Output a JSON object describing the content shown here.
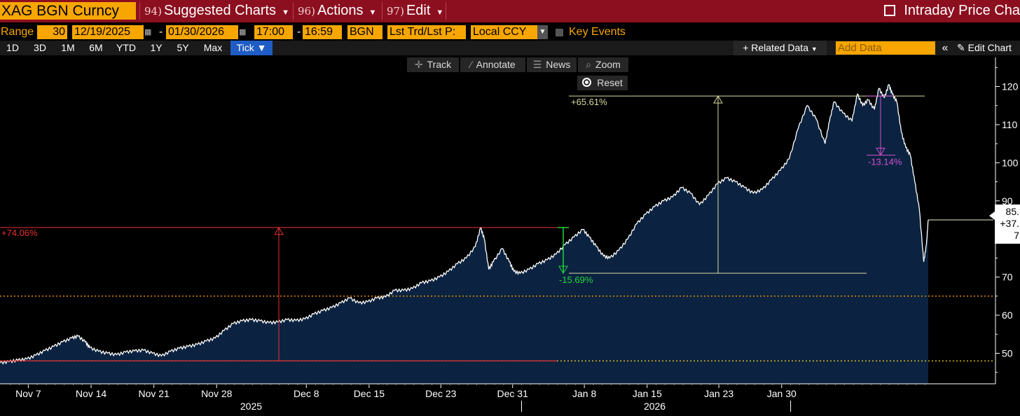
{
  "header": {
    "ticker": "XAG BGN Curncy",
    "menus": [
      {
        "num": "94)",
        "label": "Suggested Charts"
      },
      {
        "num": "96)",
        "label": "Actions"
      },
      {
        "num": "97)",
        "label": "Edit"
      }
    ],
    "intraday_label": "Intraday Price Cha"
  },
  "range_row": {
    "range_label": "Range",
    "days": "30",
    "start_date": "12/19/2025",
    "end_date": "01/30/2026",
    "start_time": "17:00",
    "end_time": "16:59",
    "source": "BGN",
    "field": "Lst Trd/Lst P:",
    "currency": "Local CCY",
    "key_events": "Key Events"
  },
  "periods": [
    "1D",
    "3D",
    "1M",
    "6M",
    "YTD",
    "1Y",
    "5Y",
    "Max",
    "Tick"
  ],
  "right_tools": {
    "related": "Related Data",
    "add_placeholder": "Add Data",
    "edit_chart": "Edit Chart"
  },
  "toolbar": {
    "track": "Track",
    "annotate": "Annotate",
    "news": "News",
    "zoom": "Zoom",
    "reset": "Reset"
  },
  "colors": {
    "title_bar": "#8c0f1f",
    "amber": "#f7a600",
    "area_fill": "#0b2340",
    "price_line": "#ffffff",
    "red_ann": "#e8302f",
    "green_ann": "#22d43a",
    "olive_ann": "#d9d9a0",
    "magenta_ann": "#d24fd2",
    "dotted_line": "#ff9900"
  },
  "chart_data": {
    "type": "area",
    "ylim": [
      42,
      128
    ],
    "yticks": [
      50,
      60,
      70,
      80,
      90,
      100,
      110,
      120
    ],
    "x_ticks": [
      {
        "label": "Nov 7",
        "x": 6
      },
      {
        "label": "Nov 14",
        "x": 13
      },
      {
        "label": "Nov 21",
        "x": 20
      },
      {
        "label": "Nov 28",
        "x": 27
      },
      {
        "label": "Dec 8",
        "x": 37
      },
      {
        "label": "Dec 15",
        "x": 44
      },
      {
        "label": "Dec 23",
        "x": 52
      },
      {
        "label": "Dec 31",
        "x": 60
      },
      {
        "label": "Jan 8",
        "x": 68
      },
      {
        "label": "Jan 15",
        "x": 75
      },
      {
        "label": "Jan 23",
        "x": 83
      },
      {
        "label": "Jan 30",
        "x": 90
      }
    ],
    "year_labels": [
      {
        "label": "2025",
        "x": 31
      },
      {
        "label": "2026",
        "x": 76
      }
    ],
    "x_unit": "days since Nov 1, 2025",
    "series": [
      {
        "points": [
          [
            3,
            47.5
          ],
          [
            4,
            47.8
          ],
          [
            5,
            48.2
          ],
          [
            6,
            48.5
          ],
          [
            7,
            49.5
          ],
          [
            8,
            50.7
          ],
          [
            9,
            51.8
          ],
          [
            10,
            53.0
          ],
          [
            11,
            54.0
          ],
          [
            11.7,
            54.5
          ],
          [
            12.5,
            53.0
          ],
          [
            13,
            51.5
          ],
          [
            14,
            50.5
          ],
          [
            15,
            50.0
          ],
          [
            16,
            49.6
          ],
          [
            17,
            50.3
          ],
          [
            18,
            50.6
          ],
          [
            19,
            50.8
          ],
          [
            20,
            50.0
          ],
          [
            21,
            49.3
          ],
          [
            22,
            50.5
          ],
          [
            23,
            51.3
          ],
          [
            24,
            51.8
          ],
          [
            25,
            52.3
          ],
          [
            26,
            53.2
          ],
          [
            27,
            54.0
          ],
          [
            28,
            56.0
          ],
          [
            29,
            57.8
          ],
          [
            30,
            58.5
          ],
          [
            31,
            58.8
          ],
          [
            32,
            58.5
          ],
          [
            33,
            58.0
          ],
          [
            34,
            58.2
          ],
          [
            35,
            58.8
          ],
          [
            36,
            58.6
          ],
          [
            37,
            59.0
          ],
          [
            38,
            60.3
          ],
          [
            39,
            61.2
          ],
          [
            40,
            62.0
          ],
          [
            41,
            63.2
          ],
          [
            42,
            64.5
          ],
          [
            43,
            63.2
          ],
          [
            44,
            63.5
          ],
          [
            45,
            64.5
          ],
          [
            46,
            64.8
          ],
          [
            47,
            66.5
          ],
          [
            48,
            66.5
          ],
          [
            49,
            67.0
          ],
          [
            50,
            68.5
          ],
          [
            51,
            69.0
          ],
          [
            52,
            70.0
          ],
          [
            53,
            71.5
          ],
          [
            54,
            73.5
          ],
          [
            55,
            75.0
          ],
          [
            56,
            78.0
          ],
          [
            56.6,
            83.0
          ],
          [
            57,
            80.0
          ],
          [
            57.5,
            72.0
          ],
          [
            58,
            74.0
          ],
          [
            59,
            77.5
          ],
          [
            59.8,
            74.0
          ],
          [
            60.3,
            71.5
          ],
          [
            61,
            71.0
          ],
          [
            62,
            72.0
          ],
          [
            63,
            73.5
          ],
          [
            64,
            74.5
          ],
          [
            65,
            76.0
          ],
          [
            66,
            78.5
          ],
          [
            67,
            80.5
          ],
          [
            68,
            82.5
          ],
          [
            68.7,
            80.5
          ],
          [
            69.5,
            78.0
          ],
          [
            70.3,
            75.5
          ],
          [
            71,
            75.0
          ],
          [
            72,
            77.0
          ],
          [
            73,
            80.0
          ],
          [
            74,
            84.0
          ],
          [
            75,
            86.5
          ],
          [
            76,
            88.5
          ],
          [
            77,
            90.0
          ],
          [
            78,
            91.0
          ],
          [
            79,
            93.5
          ],
          [
            80,
            92.0
          ],
          [
            81,
            89.0
          ],
          [
            82,
            91.5
          ],
          [
            83,
            94.5
          ],
          [
            84,
            96.0
          ],
          [
            85,
            95.0
          ],
          [
            86,
            93.5
          ],
          [
            87,
            92.0
          ],
          [
            88,
            93.0
          ],
          [
            89,
            95.5
          ],
          [
            90,
            98.0
          ],
          [
            91,
            101.0
          ],
          [
            92,
            109.0
          ],
          [
            93,
            115.0
          ],
          [
            94,
            111.5
          ],
          [
            95,
            105.0
          ],
          [
            95.5,
            111.0
          ],
          [
            96,
            116.0
          ],
          [
            97,
            113.0
          ],
          [
            98,
            111.0
          ],
          [
            98.6,
            118.0
          ],
          [
            99.2,
            115.0
          ],
          [
            99.8,
            116.5
          ],
          [
            100.5,
            114.0
          ],
          [
            101,
            119.5
          ],
          [
            101.6,
            117.0
          ],
          [
            102.1,
            120.5
          ],
          [
            102.5,
            118.0
          ],
          [
            103,
            116.0
          ],
          [
            103.5,
            108.0
          ],
          [
            104,
            104.0
          ],
          [
            104.5,
            102.0
          ],
          [
            105,
            95.0
          ],
          [
            105.5,
            88.0
          ],
          [
            106,
            74.0
          ],
          [
            106.3,
            78.5
          ],
          [
            106.5,
            85.0
          ]
        ]
      }
    ],
    "annotations": [
      {
        "label": "+74.06%",
        "color": "red"
      },
      {
        "label": "-15.69%",
        "color": "green"
      },
      {
        "label": "+65.61%",
        "color": "olive"
      },
      {
        "label": "-13.14%",
        "color": "magenta"
      }
    ],
    "reference_lines": [
      48.0,
      65.0
    ],
    "last_price_labels": [
      "85.",
      "+37.",
      "7"
    ]
  }
}
